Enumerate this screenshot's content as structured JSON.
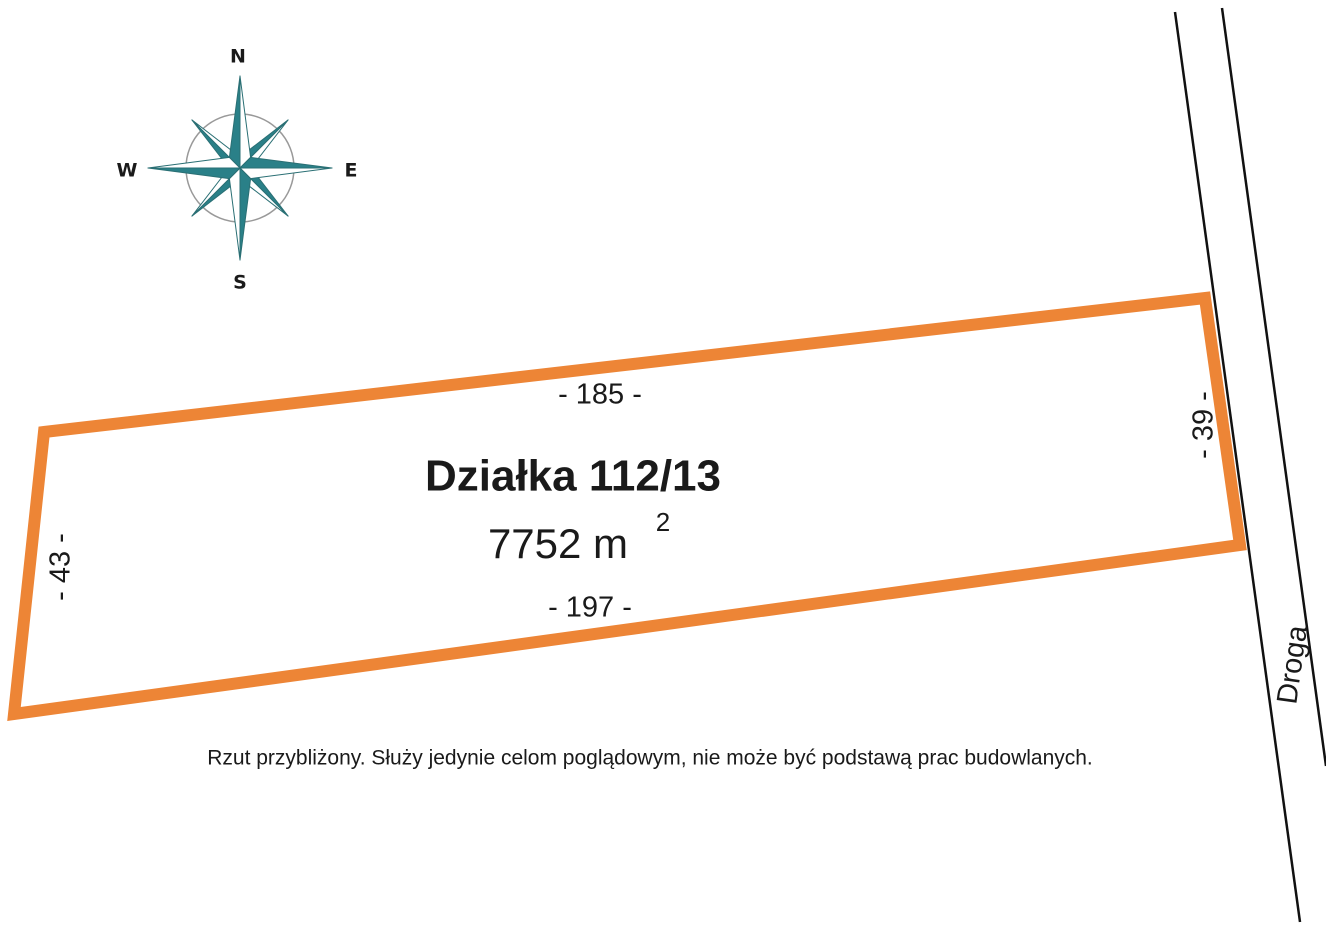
{
  "compass": {
    "north": "N",
    "east": "E",
    "south": "S",
    "west": "W"
  },
  "plot": {
    "title": "Działka 112/13",
    "area": "7752 m",
    "area_unit_exponent": "2"
  },
  "dimensions": {
    "top": "- 185 -",
    "bottom": "- 197 -",
    "left": "- 43 -",
    "right": "- 39 -"
  },
  "road": "Droga",
  "disclaimer": "Rzut przybliżony. Służy jedynie celom poglądowym, nie może być podstawą prac budowlanych."
}
